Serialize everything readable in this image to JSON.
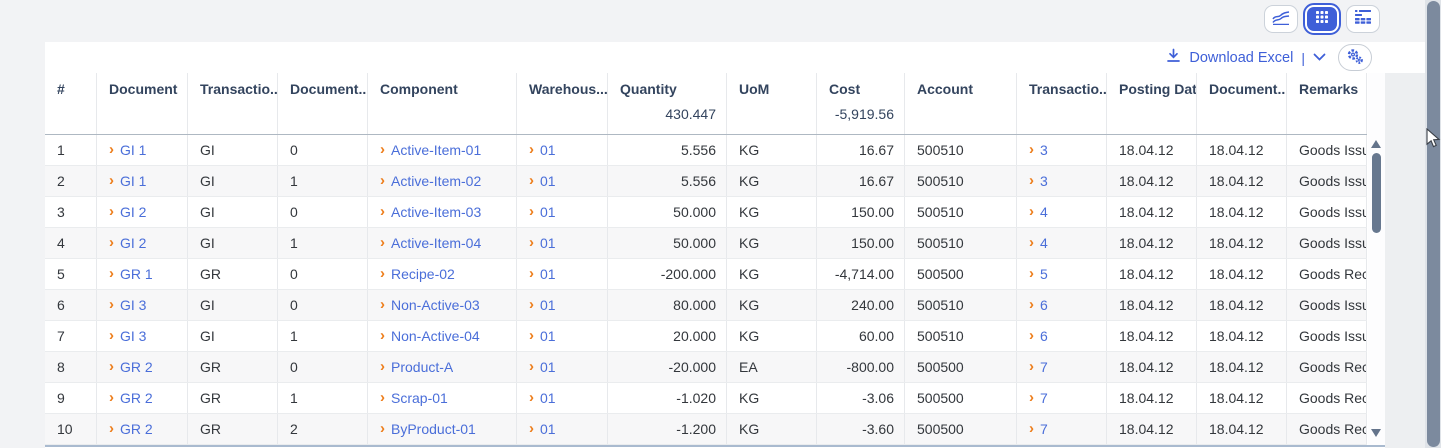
{
  "view_switcher": {
    "buttons": [
      {
        "name": "chart-view",
        "active": false
      },
      {
        "name": "table-view",
        "active": true
      },
      {
        "name": "pivot-view",
        "active": false
      }
    ]
  },
  "toolbar": {
    "download_label": "Download Excel",
    "separator": "|",
    "icons": [
      "download-icon",
      "chevron-down-icon",
      "gears-icon"
    ]
  },
  "colors": {
    "accent_blue": "#3e5fd8",
    "link_blue": "#4a6ed9",
    "chevron_orange": "#ed7d1a",
    "header_text": "#33445e",
    "scrollbar": "#7c8a9e"
  },
  "table": {
    "columns": [
      {
        "key": "idx",
        "label": "#",
        "width": 52,
        "align": "left",
        "link": false
      },
      {
        "key": "document",
        "label": "Document",
        "width": 91,
        "align": "left",
        "link": true
      },
      {
        "key": "trans_type",
        "label": "Transactio...",
        "width": 90,
        "align": "left",
        "link": false
      },
      {
        "key": "doc_line",
        "label": "Document...",
        "width": 90,
        "align": "left",
        "link": false
      },
      {
        "key": "component",
        "label": "Component",
        "width": 149,
        "align": "left",
        "link": true
      },
      {
        "key": "warehouse",
        "label": "Warehous...",
        "width": 91,
        "align": "left",
        "link": true
      },
      {
        "key": "quantity",
        "label": "Quantity",
        "width": 119,
        "align": "right",
        "link": false
      },
      {
        "key": "uom",
        "label": "UoM",
        "width": 90,
        "align": "left",
        "link": false
      },
      {
        "key": "cost",
        "label": "Cost",
        "width": 88,
        "align": "right",
        "link": false
      },
      {
        "key": "account",
        "label": "Account",
        "width": 112,
        "align": "left",
        "link": false
      },
      {
        "key": "trans_no",
        "label": "Transactio...",
        "width": 90,
        "align": "left",
        "link": true
      },
      {
        "key": "posting_date",
        "label": "Posting Date",
        "width": 90,
        "align": "left",
        "link": false
      },
      {
        "key": "doc_date",
        "label": "Document...",
        "width": 90,
        "align": "left",
        "link": false
      },
      {
        "key": "remarks",
        "label": "Remarks",
        "width": 80,
        "align": "left",
        "link": false
      }
    ],
    "totals": {
      "quantity": "430.447",
      "cost": "-5,919.56"
    },
    "rows": [
      {
        "idx": "1",
        "document": "GI 1",
        "trans_type": "GI",
        "doc_line": "0",
        "component": "Active-Item-01",
        "warehouse": "01",
        "quantity": "5.556",
        "uom": "KG",
        "cost": "16.67",
        "account": "500510",
        "trans_no": "3",
        "posting_date": "18.04.12",
        "doc_date": "18.04.12",
        "remarks": "Goods Issue"
      },
      {
        "idx": "2",
        "document": "GI 1",
        "trans_type": "GI",
        "doc_line": "1",
        "component": "Active-Item-02",
        "warehouse": "01",
        "quantity": "5.556",
        "uom": "KG",
        "cost": "16.67",
        "account": "500510",
        "trans_no": "3",
        "posting_date": "18.04.12",
        "doc_date": "18.04.12",
        "remarks": "Goods Issue"
      },
      {
        "idx": "3",
        "document": "GI 2",
        "trans_type": "GI",
        "doc_line": "0",
        "component": "Active-Item-03",
        "warehouse": "01",
        "quantity": "50.000",
        "uom": "KG",
        "cost": "150.00",
        "account": "500510",
        "trans_no": "4",
        "posting_date": "18.04.12",
        "doc_date": "18.04.12",
        "remarks": "Goods Issue"
      },
      {
        "idx": "4",
        "document": "GI 2",
        "trans_type": "GI",
        "doc_line": "1",
        "component": "Active-Item-04",
        "warehouse": "01",
        "quantity": "50.000",
        "uom": "KG",
        "cost": "150.00",
        "account": "500510",
        "trans_no": "4",
        "posting_date": "18.04.12",
        "doc_date": "18.04.12",
        "remarks": "Goods Issue"
      },
      {
        "idx": "5",
        "document": "GR 1",
        "trans_type": "GR",
        "doc_line": "0",
        "component": "Recipe-02",
        "warehouse": "01",
        "quantity": "-200.000",
        "uom": "KG",
        "cost": "-4,714.00",
        "account": "500500",
        "trans_no": "5",
        "posting_date": "18.04.12",
        "doc_date": "18.04.12",
        "remarks": "Goods Receipt"
      },
      {
        "idx": "6",
        "document": "GI 3",
        "trans_type": "GI",
        "doc_line": "0",
        "component": "Non-Active-03",
        "warehouse": "01",
        "quantity": "80.000",
        "uom": "KG",
        "cost": "240.00",
        "account": "500510",
        "trans_no": "6",
        "posting_date": "18.04.12",
        "doc_date": "18.04.12",
        "remarks": "Goods Issue"
      },
      {
        "idx": "7",
        "document": "GI 3",
        "trans_type": "GI",
        "doc_line": "1",
        "component": "Non-Active-04",
        "warehouse": "01",
        "quantity": "20.000",
        "uom": "KG",
        "cost": "60.00",
        "account": "500510",
        "trans_no": "6",
        "posting_date": "18.04.12",
        "doc_date": "18.04.12",
        "remarks": "Goods Issue"
      },
      {
        "idx": "8",
        "document": "GR 2",
        "trans_type": "GR",
        "doc_line": "0",
        "component": "Product-A",
        "warehouse": "01",
        "quantity": "-20.000",
        "uom": "EA",
        "cost": "-800.00",
        "account": "500500",
        "trans_no": "7",
        "posting_date": "18.04.12",
        "doc_date": "18.04.12",
        "remarks": "Goods Receipt"
      },
      {
        "idx": "9",
        "document": "GR 2",
        "trans_type": "GR",
        "doc_line": "1",
        "component": "Scrap-01",
        "warehouse": "01",
        "quantity": "-1.020",
        "uom": "KG",
        "cost": "-3.06",
        "account": "500500",
        "trans_no": "7",
        "posting_date": "18.04.12",
        "doc_date": "18.04.12",
        "remarks": "Goods Receipt"
      },
      {
        "idx": "10",
        "document": "GR 2",
        "trans_type": "GR",
        "doc_line": "2",
        "component": "ByProduct-01",
        "warehouse": "01",
        "quantity": "-1.200",
        "uom": "KG",
        "cost": "-3.60",
        "account": "500500",
        "trans_no": "7",
        "posting_date": "18.04.12",
        "doc_date": "18.04.12",
        "remarks": "Goods Receipt"
      }
    ]
  }
}
